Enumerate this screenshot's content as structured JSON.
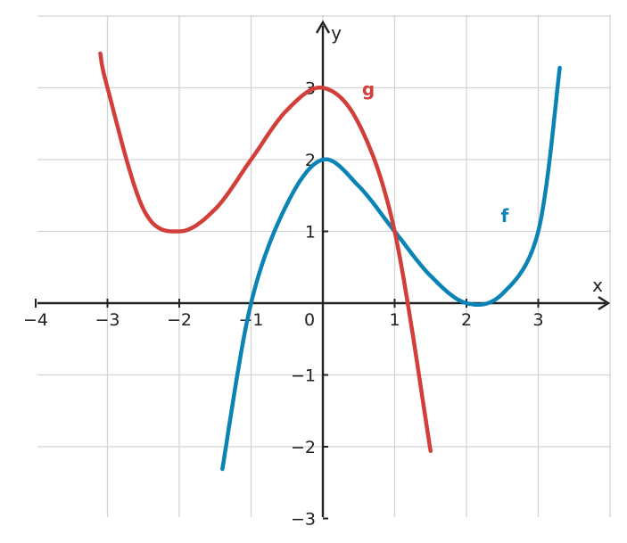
{
  "chart_data": {
    "type": "line",
    "title": "",
    "xlabel": "x",
    "ylabel": "y",
    "xlim": [
      -4,
      4
    ],
    "ylim": [
      -3,
      4
    ],
    "grid": true,
    "x_ticks": [
      "−4",
      "−3",
      "−2",
      "−1",
      "0",
      "1",
      "2",
      "3"
    ],
    "y_ticks": [
      "−3",
      "−2",
      "−1",
      "1",
      "2",
      "3"
    ],
    "series": [
      {
        "name": "f",
        "color": "#0b84b5",
        "x_range": [
          -1.4,
          3.3
        ],
        "points": [
          [
            -1.4,
            -2.31
          ],
          [
            -1.0,
            0.0
          ],
          [
            -0.5,
            1.38
          ],
          [
            0.0,
            2.0
          ],
          [
            0.5,
            1.63
          ],
          [
            1.0,
            1.0
          ],
          [
            1.5,
            0.38
          ],
          [
            2.0,
            0.0
          ],
          [
            2.5,
            0.13
          ],
          [
            3.0,
            1.0
          ],
          [
            3.3,
            3.28
          ]
        ]
      },
      {
        "name": "g",
        "color": "#d23f3a",
        "x_range": [
          -3.1,
          1.5
        ],
        "points": [
          [
            -3.1,
            3.48
          ],
          [
            -3.0,
            3.0
          ],
          [
            -2.5,
            1.31
          ],
          [
            -2.0,
            1.0
          ],
          [
            -1.5,
            1.31
          ],
          [
            -1.0,
            2.0
          ],
          [
            -0.5,
            2.69
          ],
          [
            0.0,
            3.0
          ],
          [
            0.5,
            2.5
          ],
          [
            1.0,
            1.0
          ],
          [
            1.5,
            -2.06
          ]
        ]
      }
    ]
  }
}
